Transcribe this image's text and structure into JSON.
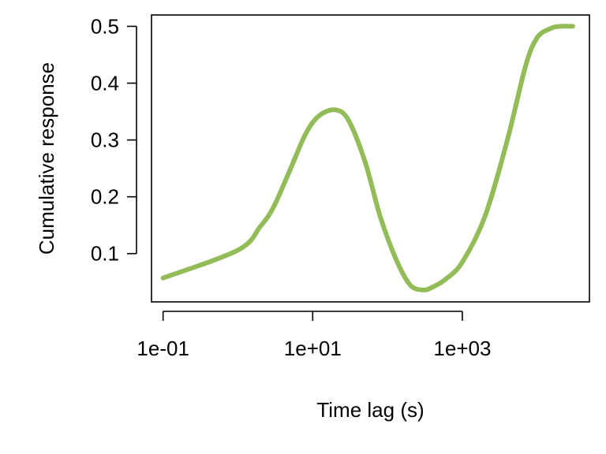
{
  "chart_data": {
    "type": "line",
    "xlabel": "Time lag (s)",
    "ylabel": "Cumulative response",
    "x_scale": "log10",
    "xlim": [
      0.07,
      50000
    ],
    "ylim": [
      0.015,
      0.52
    ],
    "x_ticks": [
      0.1,
      10,
      1000
    ],
    "x_tick_labels": [
      "1e-01",
      "1e+01",
      "1e+03"
    ],
    "y_ticks": [
      0.1,
      0.2,
      0.3,
      0.4,
      0.5
    ],
    "y_tick_labels": [
      "0.1",
      "0.2",
      "0.3",
      "0.4",
      "0.5"
    ],
    "grid": false,
    "line_color": "#92bc57",
    "series": [
      {
        "x": [
          0.1,
          1,
          2,
          3,
          5,
          8,
          12,
          20,
          30,
          50,
          80,
          130,
          200,
          300,
          400,
          600,
          1000,
          2000,
          4000,
          7000,
          10000,
          15000,
          20000,
          30000
        ],
        "y": [
          0.057,
          0.106,
          0.148,
          0.182,
          0.248,
          0.31,
          0.342,
          0.353,
          0.335,
          0.262,
          0.165,
          0.09,
          0.045,
          0.036,
          0.041,
          0.055,
          0.085,
          0.165,
          0.3,
          0.43,
          0.48,
          0.496,
          0.5,
          0.5
        ]
      }
    ]
  }
}
